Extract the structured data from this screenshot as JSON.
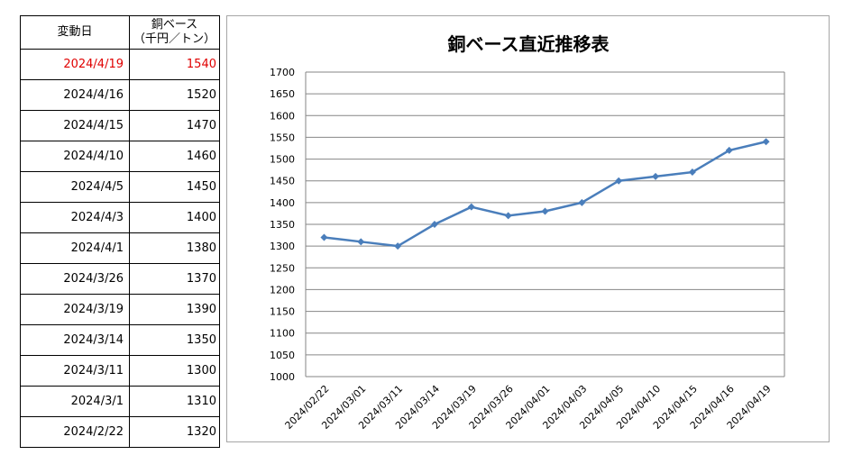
{
  "table": {
    "header": {
      "date": "変動日",
      "price_line1": "銅ベース",
      "price_line2": "（千円／トン）"
    },
    "rows": [
      {
        "date": "2024/4/19",
        "price": "1540"
      },
      {
        "date": "2024/4/16",
        "price": "1520"
      },
      {
        "date": "2024/4/15",
        "price": "1470"
      },
      {
        "date": "2024/4/10",
        "price": "1460"
      },
      {
        "date": "2024/4/5",
        "price": "1450"
      },
      {
        "date": "2024/4/3",
        "price": "1400"
      },
      {
        "date": "2024/4/1",
        "price": "1380"
      },
      {
        "date": "2024/3/26",
        "price": "1370"
      },
      {
        "date": "2024/3/19",
        "price": "1390"
      },
      {
        "date": "2024/3/14",
        "price": "1350"
      },
      {
        "date": "2024/3/11",
        "price": "1300"
      },
      {
        "date": "2024/3/1",
        "price": "1310"
      },
      {
        "date": "2024/2/22",
        "price": "1320"
      }
    ],
    "highlight_color": "#e00000"
  },
  "chart_data": {
    "type": "line",
    "title": "銅ベース直近推移表",
    "categories": [
      "2024/02/22",
      "2024/03/01",
      "2024/03/11",
      "2024/03/14",
      "2024/03/19",
      "2024/03/26",
      "2024/04/01",
      "2024/04/03",
      "2024/04/05",
      "2024/04/10",
      "2024/04/15",
      "2024/04/16",
      "2024/04/19"
    ],
    "values": [
      1320,
      1310,
      1300,
      1350,
      1390,
      1370,
      1380,
      1400,
      1450,
      1460,
      1470,
      1520,
      1540
    ],
    "ylim": [
      1000,
      1700
    ],
    "yticks": [
      1000,
      1050,
      1100,
      1150,
      1200,
      1250,
      1300,
      1350,
      1400,
      1450,
      1500,
      1550,
      1600,
      1650,
      1700
    ],
    "grid": true,
    "legend": "none",
    "line_color": "#4a7ebb"
  }
}
